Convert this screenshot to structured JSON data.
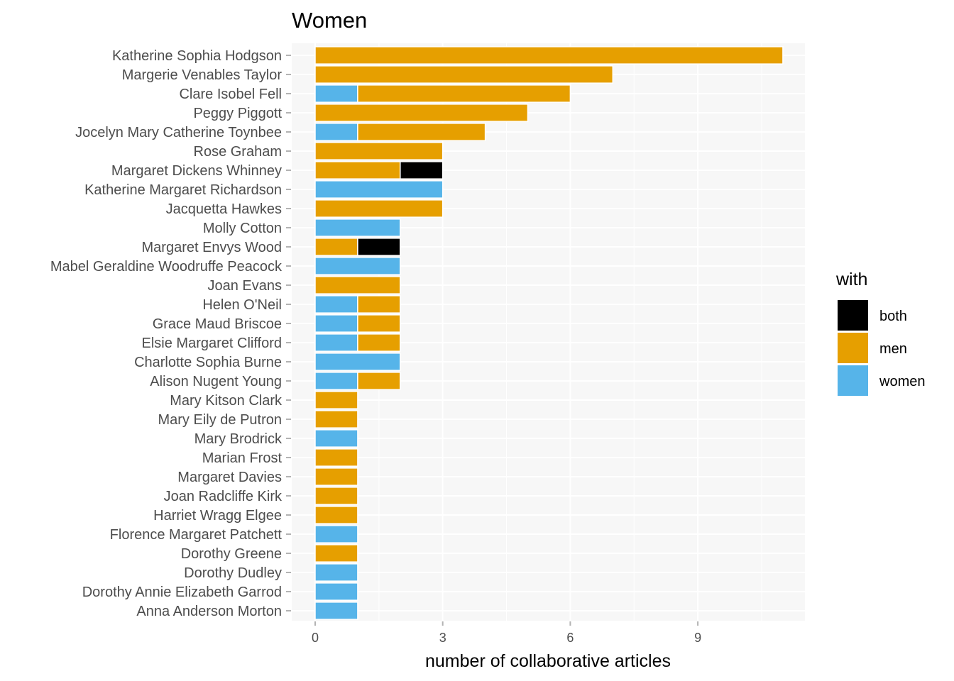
{
  "chart_data": {
    "type": "bar",
    "orientation": "horizontal",
    "stacked": true,
    "title": "Women",
    "xlabel": "number of collaborative articles",
    "ylabel": "",
    "xlim": [
      0,
      11.5
    ],
    "xticks": [
      0,
      3,
      6,
      9
    ],
    "grid": true,
    "legend_position": "right",
    "legend": {
      "title": "with",
      "entries": [
        {
          "key": "both",
          "label": "both",
          "color": "#000000"
        },
        {
          "key": "men",
          "label": "men",
          "color": "#E69F00"
        },
        {
          "key": "women",
          "label": "women",
          "color": "#56B4E9"
        }
      ]
    },
    "stack_order": [
      "women",
      "men",
      "both"
    ],
    "categories": [
      "Katherine Sophia Hodgson",
      "Margerie Venables Taylor",
      "Clare Isobel Fell",
      "Peggy Piggott",
      "Jocelyn Mary Catherine Toynbee",
      "Rose Graham",
      "Margaret Dickens Whinney",
      "Katherine Margaret Richardson",
      "Jacquetta Hawkes",
      "Molly Cotton",
      "Margaret Envys Wood",
      "Mabel Geraldine Woodruffe Peacock",
      "Joan Evans",
      "Helen O'Neil",
      "Grace Maud Briscoe",
      "Elsie Margaret Clifford",
      "Charlotte Sophia Burne",
      "Alison Nugent Young",
      "Mary Kitson Clark",
      "Mary Eily de Putron",
      "Mary Brodrick",
      "Marian Frost",
      "Margaret Davies",
      "Joan Radcliffe Kirk",
      "Harriet Wragg Elgee",
      "Florence Margaret Patchett",
      "Dorothy Greene",
      "Dorothy Dudley",
      "Dorothy Annie Elizabeth Garrod",
      "Anna Anderson Morton"
    ],
    "series": [
      {
        "name": "women",
        "values": [
          0,
          0,
          1,
          0,
          1,
          0,
          0,
          3,
          0,
          2,
          0,
          2,
          0,
          1,
          1,
          1,
          2,
          1,
          0,
          0,
          1,
          0,
          0,
          0,
          0,
          1,
          0,
          1,
          1,
          1
        ]
      },
      {
        "name": "men",
        "values": [
          11,
          7,
          5,
          5,
          3,
          3,
          2,
          0,
          3,
          0,
          1,
          0,
          2,
          1,
          1,
          1,
          0,
          1,
          1,
          1,
          0,
          1,
          1,
          1,
          1,
          0,
          1,
          0,
          0,
          0
        ]
      },
      {
        "name": "both",
        "values": [
          0,
          0,
          0,
          0,
          0,
          0,
          1,
          0,
          0,
          0,
          1,
          0,
          0,
          0,
          0,
          0,
          0,
          0,
          0,
          0,
          0,
          0,
          0,
          0,
          0,
          0,
          0,
          0,
          0,
          0
        ]
      }
    ]
  }
}
